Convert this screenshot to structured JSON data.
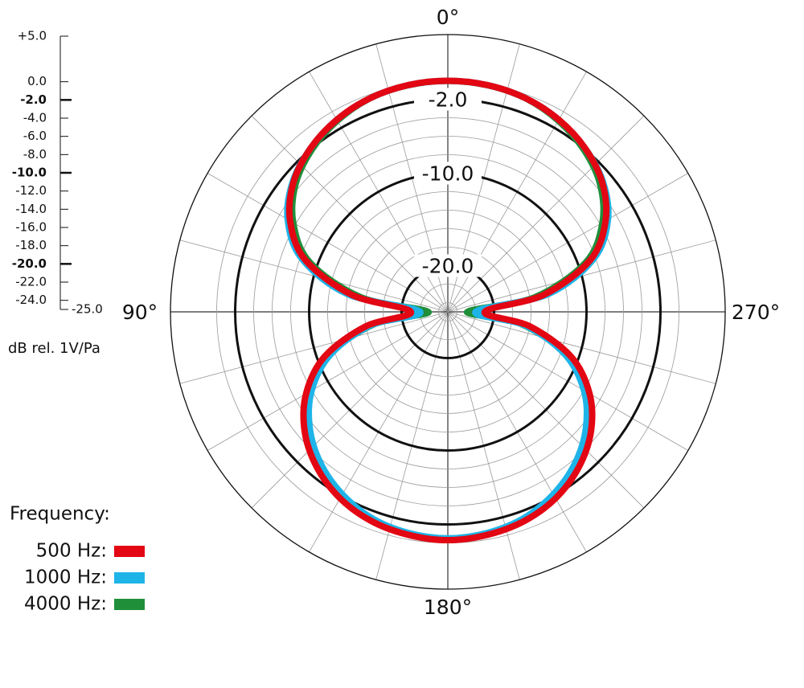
{
  "chart_data": {
    "type": "polar",
    "x": [
      0,
      10,
      20,
      30,
      40,
      50,
      60,
      70,
      80,
      90,
      100,
      110,
      120,
      130,
      140,
      150,
      160,
      170,
      180,
      190,
      200,
      210,
      220,
      230,
      240,
      250,
      260,
      270,
      280,
      290,
      300,
      310,
      320,
      330,
      340,
      350
    ],
    "series": [
      {
        "name": "500 Hz:",
        "color": "#e30613",
        "values": [
          0,
          -0.1,
          -0.4,
          -1.0,
          -1.9,
          -3.2,
          -5.3,
          -8.6,
          -14.5,
          -21,
          -16,
          -10.8,
          -7.3,
          -4.8,
          -3.0,
          -1.7,
          -0.9,
          -0.5,
          -0.3,
          -0.5,
          -0.9,
          -1.7,
          -3.0,
          -4.8,
          -7.3,
          -10.8,
          -16,
          -21,
          -14.5,
          -8.6,
          -5.3,
          -3.2,
          -1.9,
          -1.0,
          -0.4,
          -0.1
        ]
      },
      {
        "name": "1000 Hz:",
        "color": "#1eb4e8",
        "values": [
          0,
          -0.1,
          -0.4,
          -1.0,
          -1.9,
          -3.1,
          -5.0,
          -8.2,
          -14,
          -22,
          -16.5,
          -11.5,
          -8,
          -5.5,
          -3.6,
          -2.2,
          -1.2,
          -0.7,
          -0.5,
          -0.7,
          -1.2,
          -2.2,
          -3.6,
          -5.5,
          -8,
          -11.5,
          -16.5,
          -22,
          -14,
          -8.2,
          -5.0,
          -3.1,
          -1.9,
          -1.0,
          -0.4,
          -0.1
        ]
      },
      {
        "name": "4000 Hz:",
        "color": "#1f8f3a",
        "values": [
          -0.1,
          -0.2,
          -0.5,
          -1.2,
          -2.2,
          -3.6,
          -5.8,
          -9.2,
          -15.5,
          -23,
          -17,
          -11.5,
          -7.8,
          -5.2,
          -3.3,
          -2.0,
          -1.1,
          -0.7,
          -0.5,
          -0.7,
          -1.1,
          -2.0,
          -3.3,
          -5.2,
          -7.8,
          -11.5,
          -17,
          -23,
          -15.5,
          -9.2,
          -5.8,
          -3.6,
          -2.2,
          -1.2,
          -0.5,
          -0.2
        ]
      }
    ],
    "rlim": [
      -25,
      5
    ],
    "rticks": [
      {
        "value": 5,
        "label": "+5.0"
      },
      {
        "value": 0,
        "label": "0.0"
      },
      {
        "value": -2,
        "label": "-2.0"
      },
      {
        "value": -4,
        "label": "-4.0"
      },
      {
        "value": -6,
        "label": "-6.0"
      },
      {
        "value": -8,
        "label": "-8.0"
      },
      {
        "value": -10,
        "label": "-10.0"
      },
      {
        "value": -12,
        "label": "-12.0"
      },
      {
        "value": -14,
        "label": "-14.0"
      },
      {
        "value": -16,
        "label": "-16.0"
      },
      {
        "value": -18,
        "label": "-18.0"
      },
      {
        "value": -20,
        "label": "-20.0"
      },
      {
        "value": -22,
        "label": "-22.0"
      },
      {
        "value": -24,
        "label": "-24.0"
      },
      {
        "value": -25,
        "label": "-25.0"
      }
    ],
    "major_rticks": [
      {
        "value": -2,
        "label": "-2.0"
      },
      {
        "value": -10,
        "label": "-10.0"
      },
      {
        "value": -20,
        "label": "-20.0"
      }
    ],
    "angle_labels": [
      {
        "value": 0,
        "label": "0°"
      },
      {
        "value": 90,
        "label": "90°"
      },
      {
        "value": 180,
        "label": "180°"
      },
      {
        "value": 270,
        "label": "270°"
      }
    ],
    "spoke_step": 15,
    "r_axis_label": "dB rel. 1V/Pa",
    "legend_title": "Frequency:"
  }
}
